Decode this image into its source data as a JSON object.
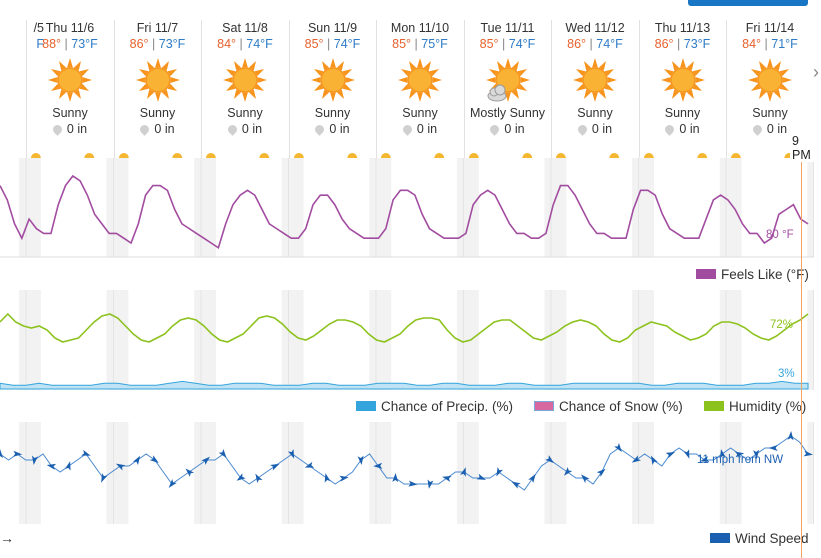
{
  "header": {
    "partial_day_label": "/5",
    "partial_day_temp": "F"
  },
  "days": [
    {
      "date": "Thu 11/6",
      "high": "88°",
      "low": "73°F",
      "condition": "Sunny",
      "precip": "0 in",
      "icon": "sun-icon"
    },
    {
      "date": "Fri 11/7",
      "high": "86°",
      "low": "73°F",
      "condition": "Sunny",
      "precip": "0 in",
      "icon": "sun-icon"
    },
    {
      "date": "Sat 11/8",
      "high": "84°",
      "low": "74°F",
      "condition": "Sunny",
      "precip": "0 in",
      "icon": "sun-icon"
    },
    {
      "date": "Sun 11/9",
      "high": "85°",
      "low": "74°F",
      "condition": "Sunny",
      "precip": "0 in",
      "icon": "sun-icon"
    },
    {
      "date": "Mon 11/10",
      "high": "85°",
      "low": "75°F",
      "condition": "Sunny",
      "precip": "0 in",
      "icon": "sun-icon"
    },
    {
      "date": "Tue 11/11",
      "high": "85°",
      "low": "74°F",
      "condition": "Mostly Sunny",
      "precip": "0 in",
      "icon": "sun-cloud-icon"
    },
    {
      "date": "Wed 11/12",
      "high": "86°",
      "low": "74°F",
      "condition": "Sunny",
      "precip": "0 in",
      "icon": "sun-icon"
    },
    {
      "date": "Thu 11/13",
      "high": "86°",
      "low": "73°F",
      "condition": "Sunny",
      "precip": "0 in",
      "icon": "sun-icon"
    },
    {
      "date": "Fri 11/14",
      "high": "84°",
      "low": "71°F",
      "condition": "Sunny",
      "precip": "0 in",
      "icon": "sun-icon"
    }
  ],
  "now_marker": "9 PM",
  "colors": {
    "feels_like": "#a24ca0",
    "humidity": "#8cc21d",
    "precip": "#34a4dc",
    "snow": "#d66aa0",
    "wind": "#1b5fb0",
    "now_line": "#f4a460",
    "high": "#e8612c",
    "low": "#2d7bc6"
  },
  "legends": {
    "feels_like": "Feels Like (°F)",
    "precip": "Chance of Precip. (%)",
    "snow": "Chance of Snow (%)",
    "humidity": "Humidity (%)",
    "wind": "Wind Speed"
  },
  "chart_data": [
    {
      "type": "line",
      "series": [
        {
          "name": "Feels Like (°F)",
          "values": [
            88,
            85,
            80,
            77,
            81,
            79,
            78,
            78,
            84,
            88,
            90,
            89,
            86,
            82,
            80,
            78,
            78,
            77,
            76,
            80,
            86,
            88,
            88,
            87,
            83,
            80,
            79,
            78,
            77,
            76,
            75,
            80,
            84,
            86,
            87,
            86,
            83,
            80,
            79,
            78,
            77,
            77,
            79,
            84,
            86,
            86,
            84,
            81,
            79,
            78,
            77,
            77,
            77,
            79,
            85,
            87,
            87,
            86,
            82,
            79,
            78,
            77,
            77,
            77,
            78,
            84,
            86,
            87,
            86,
            83,
            80,
            78,
            78,
            77,
            77,
            78,
            84,
            88,
            88,
            86,
            83,
            80,
            78,
            78,
            77,
            77,
            77,
            83,
            87,
            87,
            86,
            82,
            79,
            78,
            77,
            77,
            77,
            81,
            85,
            86,
            85,
            83,
            80,
            78,
            78,
            76,
            77,
            82,
            83,
            84,
            81,
            80
          ]
        }
      ],
      "annotation": "80 °F",
      "ylabel": "",
      "xlabel": ""
    },
    {
      "type": "line",
      "series": [
        {
          "name": "Humidity (%)",
          "values": [
            72,
            76,
            72,
            70,
            69,
            70,
            68,
            64,
            62,
            63,
            64,
            68,
            72,
            75,
            76,
            74,
            70,
            66,
            63,
            62,
            64,
            66,
            70,
            73,
            74,
            73,
            70,
            66,
            63,
            62,
            64,
            66,
            70,
            74,
            75,
            74,
            71,
            67,
            64,
            63,
            65,
            68,
            71,
            73,
            73,
            72,
            70,
            66,
            63,
            62,
            64,
            66,
            70,
            73,
            74,
            74,
            73,
            68,
            64,
            62,
            63,
            66,
            69,
            72,
            73,
            73,
            70,
            67,
            64,
            63,
            65,
            67,
            70,
            72,
            73,
            72,
            70,
            66,
            63,
            62,
            64,
            68,
            70,
            72,
            71,
            70,
            67,
            65,
            63,
            64,
            66,
            70,
            72,
            72,
            71,
            69,
            66,
            64,
            63,
            65,
            68,
            71,
            73,
            76
          ]
        },
        {
          "name": "Chance of Precip. (%)",
          "values": [
            3,
            2,
            2,
            3,
            2,
            2,
            2,
            2,
            3,
            3,
            2,
            2,
            2,
            3,
            4,
            3,
            2,
            2,
            3,
            3,
            3,
            2,
            2,
            2,
            3,
            3,
            2,
            2,
            2,
            3,
            3,
            3,
            2,
            2,
            3,
            3,
            2,
            2,
            2,
            3,
            3,
            2,
            2,
            2,
            3,
            3,
            3,
            3,
            3,
            3,
            2,
            2,
            3,
            3,
            3,
            2,
            2,
            2,
            3,
            3,
            4,
            3,
            3
          ]
        },
        {
          "name": "Chance of Snow (%)",
          "values": []
        }
      ],
      "annotations": [
        "72%",
        "3%"
      ],
      "ylabel": "",
      "xlabel": ""
    },
    {
      "type": "line",
      "series": [
        {
          "name": "Wind Speed",
          "values": [
            12,
            11,
            12,
            11,
            11,
            12,
            10,
            9,
            10,
            11,
            12,
            10,
            8,
            9,
            10,
            10,
            11,
            12,
            11,
            9,
            7,
            8,
            9,
            10,
            11,
            11,
            12,
            10,
            8,
            7,
            8,
            9,
            10,
            11,
            12,
            11,
            10,
            9,
            8,
            7,
            8,
            9,
            11,
            12,
            10,
            8,
            8,
            7,
            7,
            7,
            7,
            7,
            8,
            9,
            9,
            8,
            8,
            8,
            9,
            8,
            7,
            6,
            8,
            10,
            11,
            10,
            9,
            8,
            8,
            7,
            9,
            12,
            13,
            12,
            11,
            12,
            11,
            10,
            12,
            13,
            12,
            12,
            11,
            11,
            12,
            13,
            12,
            11,
            12,
            13,
            13,
            14,
            15,
            14,
            12
          ]
        }
      ],
      "annotation": "11 mph from NW",
      "ylabel": "",
      "xlabel": ""
    }
  ]
}
